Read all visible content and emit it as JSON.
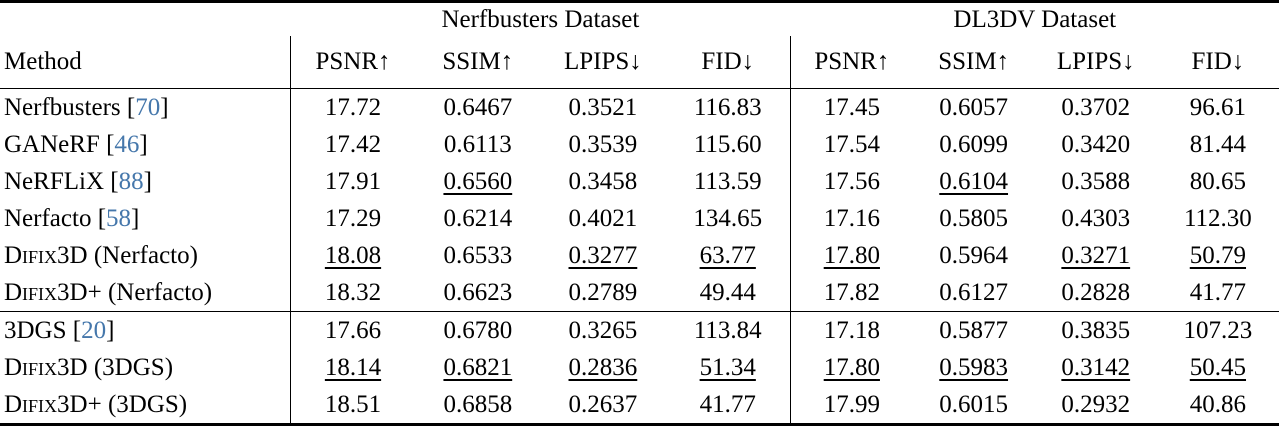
{
  "punct": {
    "open_bracket": "[",
    "close_bracket": "]"
  },
  "colors": {
    "citation_blue": "#4577ab",
    "text": "#000000",
    "rule": "#000000"
  },
  "table": {
    "groups": [
      {
        "label": "Nerfbusters Dataset"
      },
      {
        "label": "DL3DV Dataset"
      }
    ],
    "method_header": "Method",
    "metric_headers": [
      "PSNR↑",
      "SSIM↑",
      "LPIPS↓",
      "FID↓",
      "PSNR↑",
      "SSIM↑",
      "LPIPS↓",
      "FID↓"
    ],
    "style_legend": {
      "b": "bold = best result",
      "u": "underline = second best result"
    },
    "rows": [
      {
        "method": {
          "plain": "Nerfbusters ",
          "cite": "70"
        },
        "values": [
          [
            "17.72",
            ""
          ],
          [
            "0.6467",
            ""
          ],
          [
            "0.3521",
            ""
          ],
          [
            "116.83",
            ""
          ],
          [
            "17.45",
            ""
          ],
          [
            "0.6057",
            ""
          ],
          [
            "0.3702",
            ""
          ],
          [
            "96.61",
            ""
          ]
        ]
      },
      {
        "method": {
          "plain": "GANeRF ",
          "cite": "46"
        },
        "values": [
          [
            "17.42",
            ""
          ],
          [
            "0.6113",
            ""
          ],
          [
            "0.3539",
            ""
          ],
          [
            "115.60",
            ""
          ],
          [
            "17.54",
            ""
          ],
          [
            "0.6099",
            ""
          ],
          [
            "0.3420",
            ""
          ],
          [
            "81.44",
            ""
          ]
        ]
      },
      {
        "method": {
          "plain": "NeRFLiX ",
          "cite": "88"
        },
        "values": [
          [
            "17.91",
            ""
          ],
          [
            "0.6560",
            "u"
          ],
          [
            "0.3458",
            ""
          ],
          [
            "113.59",
            ""
          ],
          [
            "17.56",
            ""
          ],
          [
            "0.6104",
            "u"
          ],
          [
            "0.3588",
            ""
          ],
          [
            "80.65",
            ""
          ]
        ]
      },
      {
        "method": {
          "plain": "Nerfacto ",
          "cite": "58"
        },
        "values": [
          [
            "17.29",
            ""
          ],
          [
            "0.6214",
            ""
          ],
          [
            "0.4021",
            ""
          ],
          [
            "134.65",
            ""
          ],
          [
            "17.16",
            ""
          ],
          [
            "0.5805",
            ""
          ],
          [
            "0.4303",
            ""
          ],
          [
            "112.30",
            ""
          ]
        ]
      },
      {
        "method": {
          "sc": "Difix3D",
          "plain": " (Nerfacto)"
        },
        "values": [
          [
            "18.08",
            "u"
          ],
          [
            "0.6533",
            ""
          ],
          [
            "0.3277",
            "u"
          ],
          [
            "63.77",
            "u"
          ],
          [
            "17.80",
            "u"
          ],
          [
            "0.5964",
            ""
          ],
          [
            "0.3271",
            "u"
          ],
          [
            "50.79",
            "u"
          ]
        ]
      },
      {
        "method": {
          "sc": "Difix3D+",
          "plain": " (Nerfacto)"
        },
        "values": [
          [
            "18.32",
            "b"
          ],
          [
            "0.6623",
            "b"
          ],
          [
            "0.2789",
            "b"
          ],
          [
            "49.44",
            "b"
          ],
          [
            "17.82",
            "b"
          ],
          [
            "0.6127",
            "b"
          ],
          [
            "0.2828",
            "b"
          ],
          [
            "41.77",
            "b"
          ]
        ]
      },
      {
        "group_start": true,
        "method": {
          "plain": "3DGS ",
          "cite": "20"
        },
        "values": [
          [
            "17.66",
            ""
          ],
          [
            "0.6780",
            ""
          ],
          [
            "0.3265",
            ""
          ],
          [
            "113.84",
            ""
          ],
          [
            "17.18",
            ""
          ],
          [
            "0.5877",
            ""
          ],
          [
            "0.3835",
            ""
          ],
          [
            "107.23",
            ""
          ]
        ]
      },
      {
        "method": {
          "sc": "Difix3D",
          "plain": " (3DGS)"
        },
        "values": [
          [
            "18.14",
            "u"
          ],
          [
            "0.6821",
            "u"
          ],
          [
            "0.2836",
            "u"
          ],
          [
            "51.34",
            "u"
          ],
          [
            "17.80",
            "u"
          ],
          [
            "0.5983",
            "u"
          ],
          [
            "0.3142",
            "u"
          ],
          [
            "50.45",
            "u"
          ]
        ]
      },
      {
        "method": {
          "sc": "Difix3D+",
          "plain": " (3DGS)"
        },
        "values": [
          [
            "18.51",
            "b"
          ],
          [
            "0.6858",
            "b"
          ],
          [
            "0.2637",
            "b"
          ],
          [
            "41.77",
            "b"
          ],
          [
            "17.99",
            "b"
          ],
          [
            "0.6015",
            "b"
          ],
          [
            "0.2932",
            "b"
          ],
          [
            "40.86",
            "b"
          ]
        ]
      }
    ]
  }
}
